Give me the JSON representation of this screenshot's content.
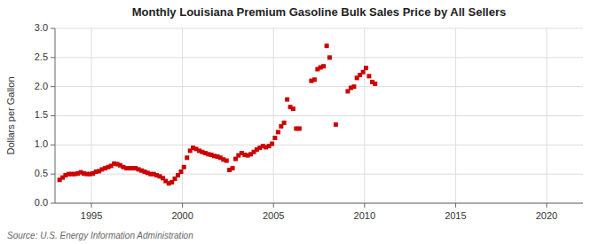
{
  "chart_data": {
    "type": "scatter",
    "title": "Monthly Louisiana Premium Gasoline Bulk Sales Price by All Sellers",
    "ylabel": "Dollars per Gallon",
    "source": "Source: U.S. Energy Information Administration",
    "color": "#cc0000",
    "marker": "square",
    "grid": true,
    "xlim": [
      1993.0,
      2022.0
    ],
    "ylim": [
      0.0,
      3.0
    ],
    "xticks": [
      1995,
      2000,
      2005,
      2010,
      2015,
      2020
    ],
    "yticks": [
      {
        "value": 0.0,
        "label": "0.0"
      },
      0.5,
      {
        "value": 1.0,
        "label": "1.0"
      },
      1.5,
      {
        "value": 2.0,
        "label": "2.0"
      },
      2.5,
      {
        "value": 3.0,
        "label": "3.0"
      }
    ],
    "x": [
      1993.25,
      1993.42,
      1993.58,
      1993.75,
      1993.92,
      1994.08,
      1994.25,
      1994.42,
      1994.58,
      1994.75,
      1994.92,
      1995.08,
      1995.25,
      1995.42,
      1995.58,
      1995.75,
      1995.92,
      1996.08,
      1996.25,
      1996.42,
      1996.58,
      1996.75,
      1996.92,
      1997.08,
      1997.25,
      1997.42,
      1997.58,
      1997.75,
      1997.92,
      1998.08,
      1998.25,
      1998.42,
      1998.58,
      1998.75,
      1998.92,
      1999.08,
      1999.25,
      1999.42,
      1999.58,
      1999.75,
      1999.92,
      2000.08,
      2000.25,
      2000.42,
      2000.58,
      2000.75,
      2000.92,
      2001.08,
      2001.25,
      2001.42,
      2001.58,
      2001.75,
      2001.92,
      2002.08,
      2002.25,
      2002.42,
      2002.58,
      2002.75,
      2002.92,
      2003.08,
      2003.25,
      2003.42,
      2003.58,
      2003.75,
      2003.92,
      2004.08,
      2004.25,
      2004.42,
      2004.58,
      2004.75,
      2004.92,
      2005.08,
      2005.25,
      2005.42,
      2005.58,
      2005.75,
      2005.92,
      2006.08,
      2006.25,
      2006.42,
      2007.08,
      2007.25,
      2007.42,
      2007.58,
      2007.75,
      2007.92,
      2008.08,
      2008.42,
      2009.08,
      2009.25,
      2009.42,
      2009.58,
      2009.75,
      2009.92,
      2010.08,
      2010.25,
      2010.42,
      2010.58
    ],
    "values": [
      0.4,
      0.44,
      0.48,
      0.5,
      0.5,
      0.5,
      0.51,
      0.53,
      0.51,
      0.5,
      0.5,
      0.51,
      0.54,
      0.55,
      0.58,
      0.6,
      0.62,
      0.64,
      0.68,
      0.67,
      0.65,
      0.62,
      0.6,
      0.6,
      0.6,
      0.6,
      0.58,
      0.56,
      0.54,
      0.52,
      0.5,
      0.5,
      0.48,
      0.46,
      0.43,
      0.38,
      0.34,
      0.36,
      0.42,
      0.48,
      0.54,
      0.62,
      0.78,
      0.9,
      0.95,
      0.93,
      0.9,
      0.88,
      0.86,
      0.84,
      0.83,
      0.81,
      0.8,
      0.78,
      0.75,
      0.73,
      0.57,
      0.6,
      0.76,
      0.82,
      0.86,
      0.83,
      0.82,
      0.84,
      0.88,
      0.92,
      0.95,
      0.98,
      0.96,
      0.98,
      1.02,
      1.12,
      1.22,
      1.32,
      1.38,
      1.78,
      1.65,
      1.62,
      1.28,
      1.28,
      2.1,
      2.12,
      2.3,
      2.33,
      2.35,
      2.7,
      2.5,
      1.35,
      1.92,
      1.98,
      2.0,
      2.15,
      2.2,
      2.25,
      2.32,
      2.18,
      2.08,
      2.05
    ]
  }
}
